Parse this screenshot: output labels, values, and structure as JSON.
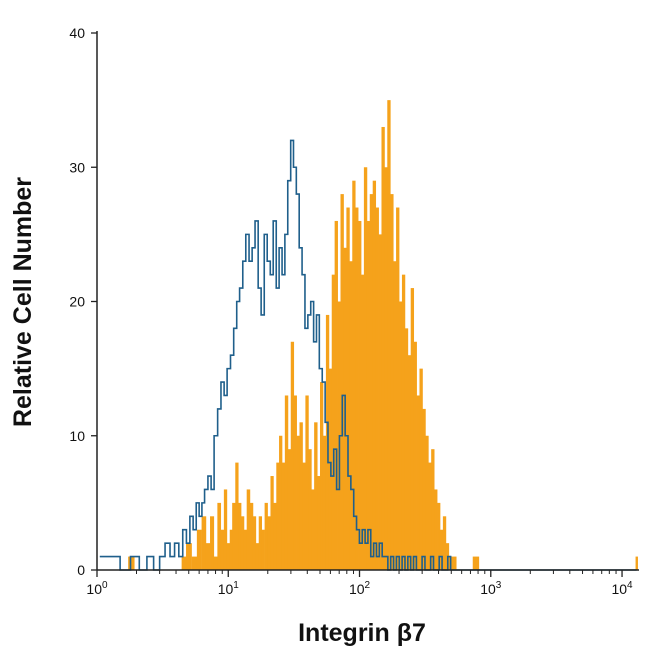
{
  "chart_data": {
    "type": "histogram",
    "xlabel": "Integrin β7",
    "ylabel": "Relative Cell Number",
    "x_scale": "log",
    "xlim": [
      1,
      13000
    ],
    "ylim": [
      0,
      40
    ],
    "x_ticks": [
      {
        "value": 1,
        "base": "10",
        "exp": "0"
      },
      {
        "value": 10,
        "base": "10",
        "exp": "1"
      },
      {
        "value": 100,
        "base": "10",
        "exp": "2"
      },
      {
        "value": 1000,
        "base": "10",
        "exp": "3"
      },
      {
        "value": 10000,
        "base": "10",
        "exp": "4"
      }
    ],
    "y_ticks": [
      0,
      10,
      20,
      30,
      40
    ],
    "grid": false,
    "legend": "none",
    "series": [
      {
        "style": "filled",
        "color": "#F5A21B",
        "points": [
          [
            1.82,
            1
          ],
          [
            4.6,
            1
          ],
          [
            5.0,
            2
          ],
          [
            5.5,
            1
          ],
          [
            6.0,
            3
          ],
          [
            6.5,
            4
          ],
          [
            7.0,
            2
          ],
          [
            7.5,
            4
          ],
          [
            8.0,
            1
          ],
          [
            8.5,
            5
          ],
          [
            9.0,
            3
          ],
          [
            9.5,
            6
          ],
          [
            10.0,
            2
          ],
          [
            10.5,
            3
          ],
          [
            11.0,
            5
          ],
          [
            11.6,
            8
          ],
          [
            12.2,
            5
          ],
          [
            12.8,
            4
          ],
          [
            13.5,
            3
          ],
          [
            14.2,
            6
          ],
          [
            15.0,
            5
          ],
          [
            15.8,
            4
          ],
          [
            16.6,
            2
          ],
          [
            17.5,
            4
          ],
          [
            18.4,
            3
          ],
          [
            19.4,
            5
          ],
          [
            20.4,
            4
          ],
          [
            21.5,
            7
          ],
          [
            22.6,
            5
          ],
          [
            23.8,
            8
          ],
          [
            25.0,
            10
          ],
          [
            26.3,
            8
          ],
          [
            27.7,
            13
          ],
          [
            29.2,
            9
          ],
          [
            30.7,
            17
          ],
          [
            32.3,
            13
          ],
          [
            34.0,
            10
          ],
          [
            35.8,
            11
          ],
          [
            37.7,
            8
          ],
          [
            39.7,
            13
          ],
          [
            41.8,
            9
          ],
          [
            44.0,
            6
          ],
          [
            46.3,
            11
          ],
          [
            48.8,
            7
          ],
          [
            51.3,
            14
          ],
          [
            54.0,
            10
          ],
          [
            56.9,
            19
          ],
          [
            59.9,
            15
          ],
          [
            63.0,
            22
          ],
          [
            66.3,
            26
          ],
          [
            69.8,
            20
          ],
          [
            73.5,
            28
          ],
          [
            77.4,
            24
          ],
          [
            81.5,
            27
          ],
          [
            85.8,
            23
          ],
          [
            90.3,
            29
          ],
          [
            95.0,
            27
          ],
          [
            100.0,
            26
          ],
          [
            105.3,
            22
          ],
          [
            110.8,
            30
          ],
          [
            116.7,
            26
          ],
          [
            122.8,
            28
          ],
          [
            129.3,
            29
          ],
          [
            136.1,
            27
          ],
          [
            143.2,
            25
          ],
          [
            150.8,
            33
          ],
          [
            158.7,
            30
          ],
          [
            167.0,
            35
          ],
          [
            175.8,
            28
          ],
          [
            185.1,
            23
          ],
          [
            194.8,
            27
          ],
          [
            205.1,
            20
          ],
          [
            215.9,
            22
          ],
          [
            227.2,
            18
          ],
          [
            239.2,
            16
          ],
          [
            251.8,
            21
          ],
          [
            265.0,
            17
          ],
          [
            279.0,
            13
          ],
          [
            293.7,
            15
          ],
          [
            309.2,
            12
          ],
          [
            325.4,
            10
          ],
          [
            342.6,
            8
          ],
          [
            360.6,
            9
          ],
          [
            379.6,
            6
          ],
          [
            399.6,
            5
          ],
          [
            420.7,
            3
          ],
          [
            442.8,
            4
          ],
          [
            466.1,
            2
          ],
          [
            490.6,
            1
          ],
          [
            516.5,
            1
          ],
          [
            768.0,
            1
          ],
          [
            12900.0,
            1
          ]
        ]
      },
      {
        "style": "outline",
        "color": "#1F5F8B",
        "points": [
          [
            1.05,
            1
          ],
          [
            1.3,
            1
          ],
          [
            1.5,
            0
          ],
          [
            1.8,
            1
          ],
          [
            2.1,
            0
          ],
          [
            2.4,
            1
          ],
          [
            2.7,
            0
          ],
          [
            3.0,
            1
          ],
          [
            3.3,
            2
          ],
          [
            3.6,
            1
          ],
          [
            3.9,
            2
          ],
          [
            4.2,
            1
          ],
          [
            4.5,
            3
          ],
          [
            4.8,
            2
          ],
          [
            5.1,
            4
          ],
          [
            5.4,
            3
          ],
          [
            5.7,
            5
          ],
          [
            6.0,
            4
          ],
          [
            6.3,
            5
          ],
          [
            6.6,
            6
          ],
          [
            7.0,
            7
          ],
          [
            7.4,
            6
          ],
          [
            7.8,
            10
          ],
          [
            8.3,
            12
          ],
          [
            8.8,
            14
          ],
          [
            9.3,
            13
          ],
          [
            9.8,
            15
          ],
          [
            10.4,
            16
          ],
          [
            11.0,
            18
          ],
          [
            11.6,
            20
          ],
          [
            12.2,
            21
          ],
          [
            12.9,
            23
          ],
          [
            13.6,
            25
          ],
          [
            14.4,
            23
          ],
          [
            15.2,
            24
          ],
          [
            16.0,
            26
          ],
          [
            16.9,
            21
          ],
          [
            17.8,
            19
          ],
          [
            18.8,
            25
          ],
          [
            19.8,
            23
          ],
          [
            20.9,
            22
          ],
          [
            22.0,
            26
          ],
          [
            23.2,
            21
          ],
          [
            24.4,
            24
          ],
          [
            25.7,
            22
          ],
          [
            27.0,
            25
          ],
          [
            28.4,
            29
          ],
          [
            29.9,
            32
          ],
          [
            31.4,
            30
          ],
          [
            33.0,
            28
          ],
          [
            34.7,
            24
          ],
          [
            36.5,
            22
          ],
          [
            38.4,
            18
          ],
          [
            40.4,
            19
          ],
          [
            42.5,
            20
          ],
          [
            44.7,
            17
          ],
          [
            47.0,
            19
          ],
          [
            49.4,
            15
          ],
          [
            52.0,
            14
          ],
          [
            54.7,
            11
          ],
          [
            57.5,
            8
          ],
          [
            60.5,
            7
          ],
          [
            63.6,
            9
          ],
          [
            66.9,
            6
          ],
          [
            70.3,
            10
          ],
          [
            73.9,
            13
          ],
          [
            77.7,
            10
          ],
          [
            81.7,
            7
          ],
          [
            85.9,
            6
          ],
          [
            90.3,
            4
          ],
          [
            94.9,
            3
          ],
          [
            99.8,
            2
          ],
          [
            104.9,
            3
          ],
          [
            110.3,
            2
          ],
          [
            115.9,
            3
          ],
          [
            121.8,
            1
          ],
          [
            128.1,
            2
          ],
          [
            134.6,
            1
          ],
          [
            141.5,
            2
          ],
          [
            148.8,
            1
          ],
          [
            156.4,
            1
          ],
          [
            164.4,
            0
          ],
          [
            172.8,
            1
          ],
          [
            181.7,
            0
          ],
          [
            191.0,
            1
          ],
          [
            200.8,
            0
          ],
          [
            211.1,
            1
          ],
          [
            222.0,
            0
          ],
          [
            233.4,
            1
          ],
          [
            245.3,
            0
          ],
          [
            257.9,
            1
          ],
          [
            271.2,
            0
          ],
          [
            285.1,
            0
          ],
          [
            299.7,
            1
          ],
          [
            315.1,
            0
          ],
          [
            331.3,
            0
          ],
          [
            348.3,
            1
          ],
          [
            366.1,
            0
          ],
          [
            385.0,
            0
          ],
          [
            404.7,
            1
          ],
          [
            425.5,
            0
          ],
          [
            447.3,
            0
          ],
          [
            470.3,
            1
          ],
          [
            494.4,
            0
          ],
          [
            600,
            0
          ],
          [
            1000,
            0
          ],
          [
            2000,
            0
          ],
          [
            5000,
            0
          ],
          [
            10000,
            0
          ],
          [
            12900,
            0
          ]
        ]
      }
    ]
  }
}
